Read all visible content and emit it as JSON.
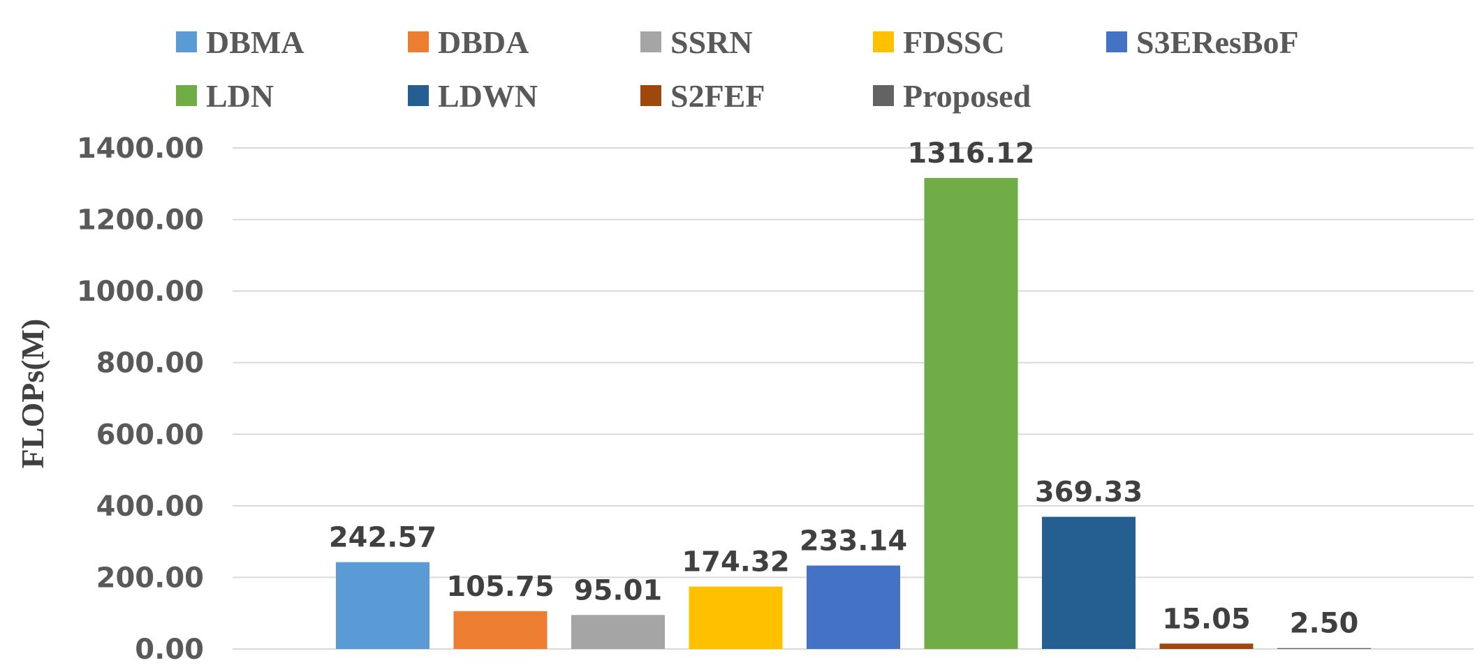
{
  "chart_data": {
    "type": "bar",
    "title": "",
    "xlabel": "",
    "ylabel": "FLOPs(M)",
    "ylim": [
      0,
      1400
    ],
    "yticks": [
      "0.00",
      "200.00",
      "400.00",
      "600.00",
      "800.00",
      "1000.00",
      "1200.00",
      "1400.00"
    ],
    "grid": true,
    "legend_position": "top",
    "series": [
      {
        "name": "DBMA",
        "value": 242.57,
        "label": "242.57",
        "color": "#5B9BD5"
      },
      {
        "name": "DBDA",
        "value": 105.75,
        "label": "105.75",
        "color": "#ED7D31"
      },
      {
        "name": "SSRN",
        "value": 95.01,
        "label": "95.01",
        "color": "#A5A5A5"
      },
      {
        "name": "FDSSC",
        "value": 174.32,
        "label": "174.32",
        "color": "#FFC000"
      },
      {
        "name": "S3EResBoF",
        "value": 233.14,
        "label": "233.14",
        "color": "#4472C4"
      },
      {
        "name": "LDN",
        "value": 1316.12,
        "label": "1316.12",
        "color": "#70AD47"
      },
      {
        "name": "LDWN",
        "value": 369.33,
        "label": "369.33",
        "color": "#255E91"
      },
      {
        "name": "S2FEF",
        "value": 15.05,
        "label": "15.05",
        "color": "#9E480E"
      },
      {
        "name": "Proposed",
        "value": 2.5,
        "label": "2.50",
        "color": "#636363"
      }
    ]
  }
}
